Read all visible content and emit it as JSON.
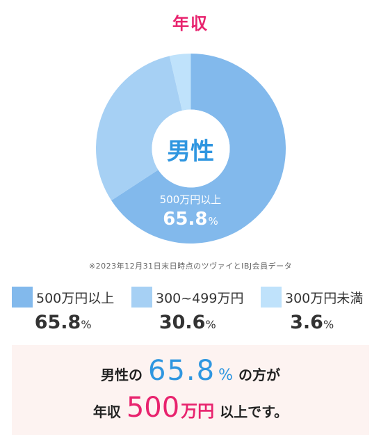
{
  "title": "年収",
  "chart_data": {
    "type": "pie",
    "center_label": "男性",
    "slices": [
      {
        "name": "500万円以上",
        "value": 65.8,
        "color": "#82b9ec"
      },
      {
        "name": "300~499万円",
        "value": 30.6,
        "color": "#a6d0f4"
      },
      {
        "name": "300万円未満",
        "value": 3.6,
        "color": "#bfe2fb"
      }
    ],
    "unit": "%",
    "slice_label": {
      "name": "500万円以上",
      "value": "65.8"
    }
  },
  "note": "※2023年12月31日末日時点のツヴァイとIBJ会員データ",
  "legend": [
    {
      "label": "500万円以上",
      "value": "65.8",
      "unit": "%",
      "color": "#82b9ec"
    },
    {
      "label": "300~499万円",
      "value": "30.6",
      "unit": "%",
      "color": "#a6d0f4"
    },
    {
      "label": "300万円未満",
      "value": "3.6",
      "unit": "%",
      "color": "#bfe2fb"
    }
  ],
  "summary": {
    "line1_prefix": "男性の",
    "line1_value": "65.8",
    "line1_unit": "%",
    "line1_suffix": "の方が",
    "line2_prefix": "年収",
    "line2_value": "500",
    "line2_unit": "万円",
    "line2_suffix": "以上です。",
    "background": "#fdf3f1"
  }
}
